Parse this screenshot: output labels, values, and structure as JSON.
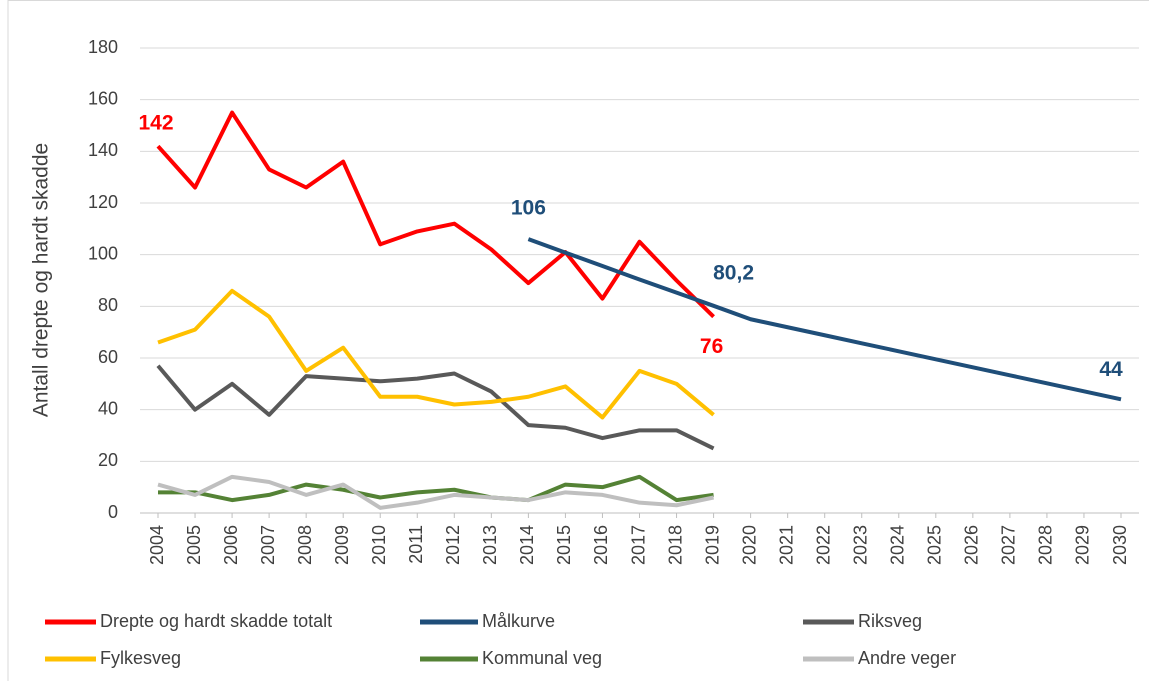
{
  "chart_data": {
    "type": "line",
    "y_label": "Antall drepte og hardt skadde",
    "x": [
      2004,
      2005,
      2006,
      2007,
      2008,
      2009,
      2010,
      2011,
      2012,
      2013,
      2014,
      2015,
      2016,
      2017,
      2018,
      2019,
      2020,
      2021,
      2022,
      2023,
      2024,
      2025,
      2026,
      2027,
      2028,
      2029,
      2030
    ],
    "xlim": [
      2004,
      2030
    ],
    "xticks": [
      2004,
      2005,
      2006,
      2007,
      2008,
      2009,
      2010,
      2011,
      2012,
      2013,
      2014,
      2015,
      2016,
      2017,
      2018,
      2019,
      2020,
      2021,
      2022,
      2023,
      2024,
      2025,
      2026,
      2027,
      2028,
      2029,
      2030
    ],
    "ylim": [
      0,
      180
    ],
    "yticks": [
      0,
      20,
      40,
      60,
      80,
      100,
      120,
      140,
      160,
      180
    ],
    "grid": true,
    "legend": "bottom",
    "series": [
      {
        "name": "Drepte og hardt skadde totalt",
        "color": "#ff0000",
        "values": [
          142,
          126,
          155,
          133,
          126,
          136,
          104,
          109,
          112,
          102,
          89,
          101,
          83,
          105,
          90,
          76,
          null,
          null,
          null,
          null,
          null,
          null,
          null,
          null,
          null,
          null,
          null
        ],
        "value_labels": [
          "142",
          null,
          null,
          null,
          null,
          null,
          null,
          null,
          null,
          null,
          null,
          null,
          null,
          null,
          null,
          "76",
          null,
          null,
          null,
          null,
          null,
          null,
          null,
          null,
          null,
          null,
          null
        ]
      },
      {
        "name": "Målkurve",
        "color": "#1f4e79",
        "values": [
          null,
          null,
          null,
          null,
          null,
          null,
          null,
          null,
          null,
          null,
          106,
          100.8,
          95.6,
          90.4,
          85.3,
          80.2,
          75,
          71.9,
          68.8,
          65.7,
          62.6,
          59.5,
          56.4,
          53.3,
          50.2,
          47.1,
          44
        ],
        "value_labels": [
          null,
          null,
          null,
          null,
          null,
          null,
          null,
          null,
          null,
          null,
          "106",
          null,
          null,
          null,
          null,
          "80,2",
          null,
          null,
          null,
          null,
          null,
          null,
          null,
          null,
          null,
          null,
          "44"
        ]
      },
      {
        "name": "Riksveg",
        "color": "#595959",
        "values": [
          57,
          40,
          50,
          38,
          53,
          52,
          51,
          52,
          54,
          47,
          34,
          33,
          29,
          32,
          32,
          25,
          null,
          null,
          null,
          null,
          null,
          null,
          null,
          null,
          null,
          null,
          null
        ]
      },
      {
        "name": "Fylkesveg",
        "color": "#ffc000",
        "values": [
          66,
          71,
          86,
          76,
          55,
          64,
          45,
          45,
          42,
          43,
          45,
          49,
          37,
          55,
          50,
          38,
          null,
          null,
          null,
          null,
          null,
          null,
          null,
          null,
          null,
          null,
          null
        ]
      },
      {
        "name": "Kommunal veg",
        "color": "#548235",
        "values": [
          8,
          8,
          5,
          7,
          11,
          9,
          6,
          8,
          9,
          6,
          5,
          11,
          10,
          14,
          5,
          7,
          null,
          null,
          null,
          null,
          null,
          null,
          null,
          null,
          null,
          null,
          null
        ]
      },
      {
        "name": "Andre veger",
        "color": "#bfbfbf",
        "values": [
          11,
          7,
          14,
          12,
          7,
          11,
          2,
          4,
          7,
          6,
          5,
          8,
          7,
          4,
          3,
          6,
          null,
          null,
          null,
          null,
          null,
          null,
          null,
          null,
          null,
          null,
          null
        ]
      }
    ]
  }
}
